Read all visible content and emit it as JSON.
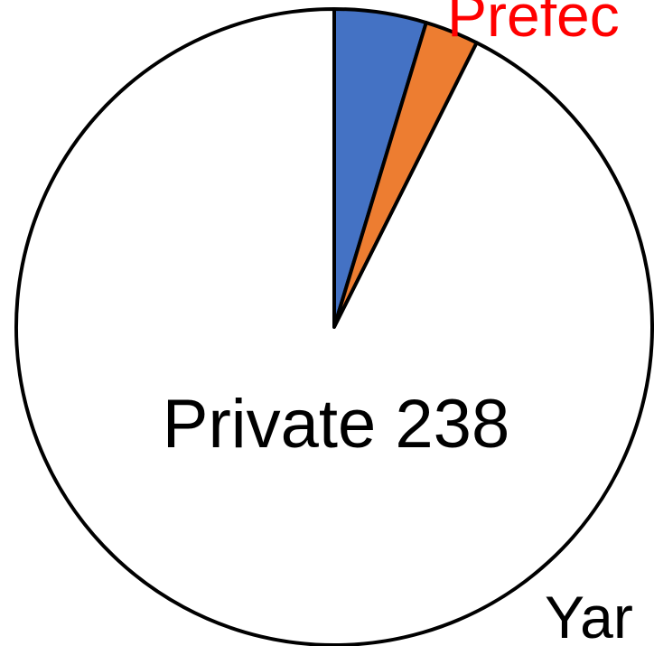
{
  "chart_data": {
    "type": "pie",
    "values": [
      12,
      7,
      238
    ],
    "value_labels": [
      null,
      null,
      "Private 238"
    ],
    "colors": [
      "#4472c4",
      "#ed7d31",
      "#ffffff"
    ],
    "annotations": [
      {
        "text": "Prefec",
        "color": "#ff0000"
      },
      {
        "text": "Yar",
        "color": "#000000"
      }
    ]
  }
}
